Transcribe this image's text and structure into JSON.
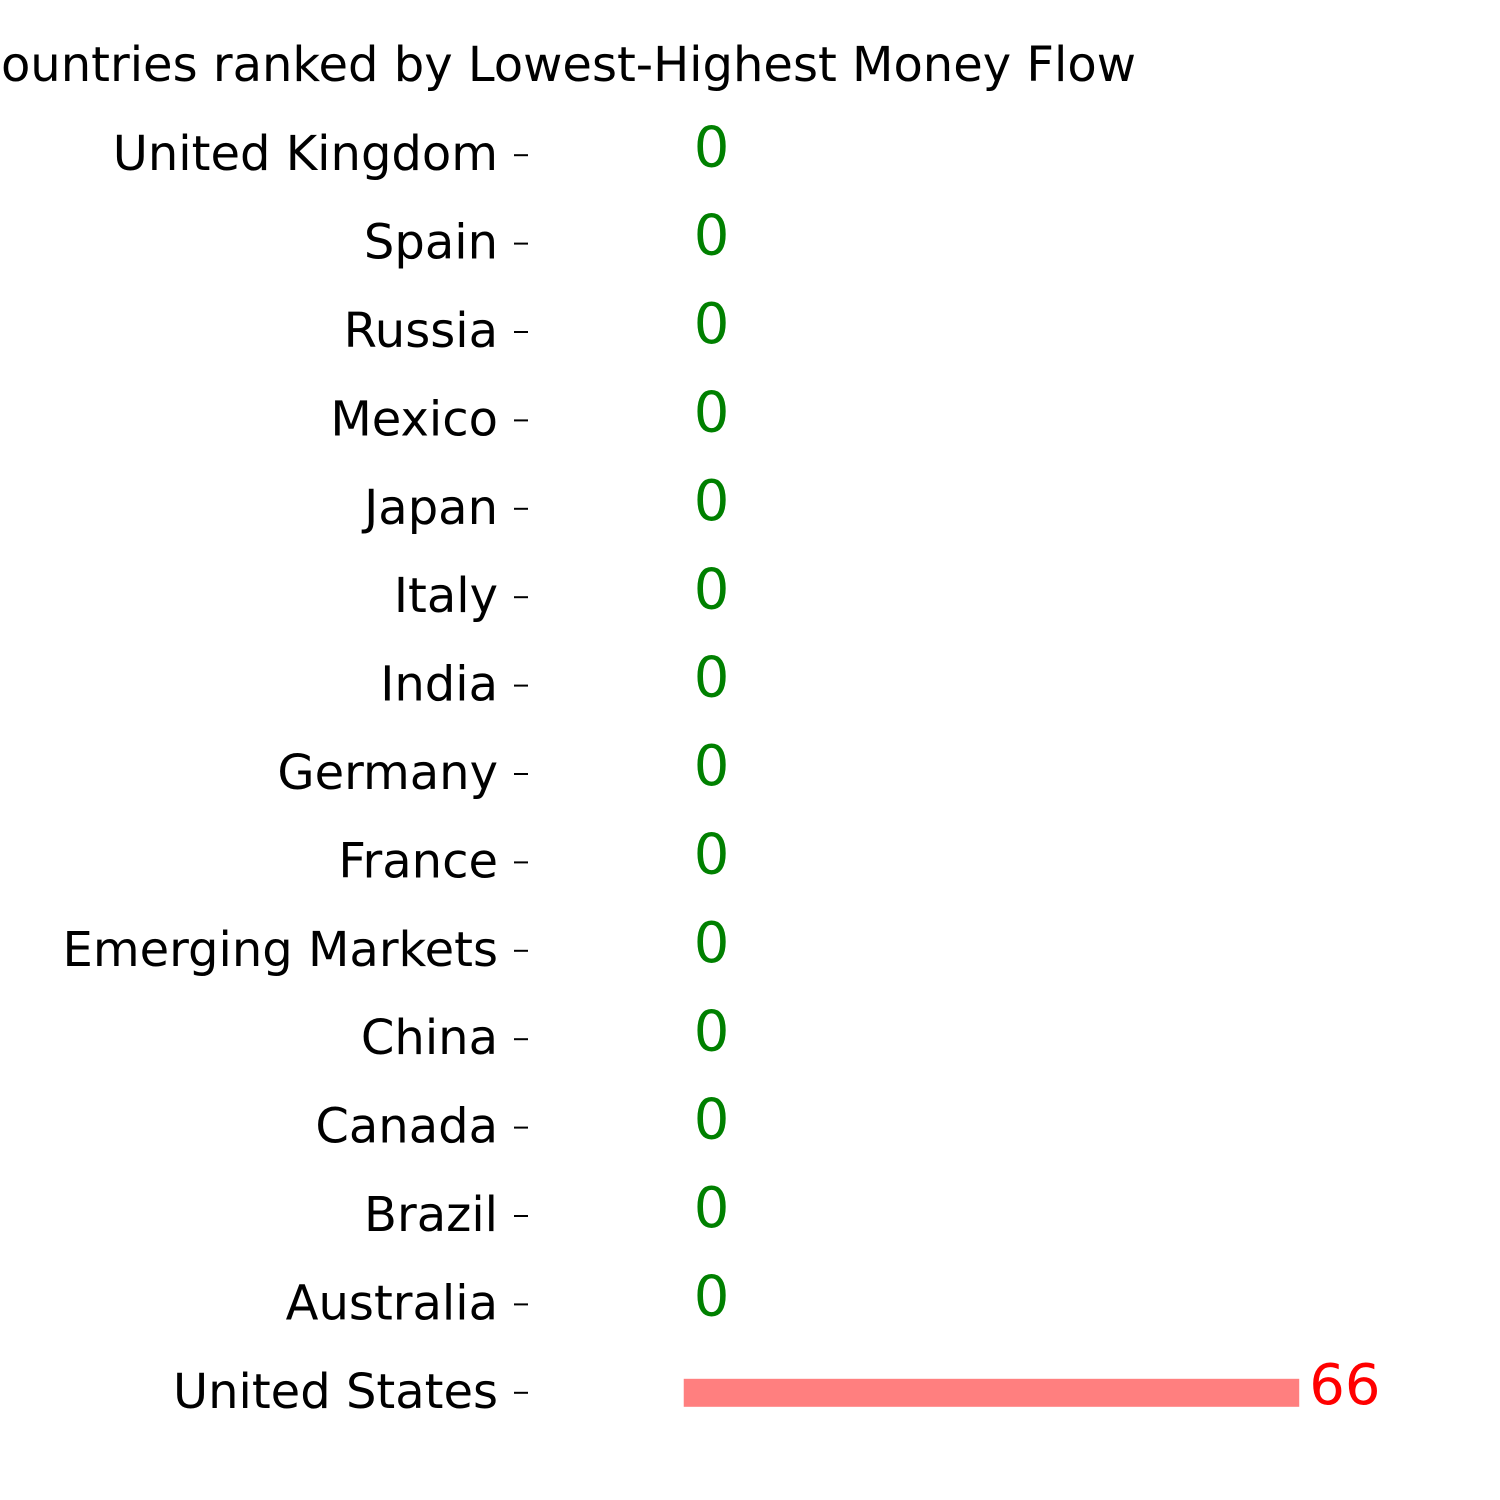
{
  "chart_data": {
    "type": "barh",
    "title": "Countries ranked by Lowest-Highest Money Flow",
    "categories": [
      "United Kingdom",
      "Spain",
      "Russia",
      "Mexico",
      "Japan",
      "Italy",
      "India",
      "Germany",
      "France",
      "Emerging Markets",
      "China",
      "Canada",
      "Brazil",
      "Australia",
      "United States"
    ],
    "values": [
      0,
      0,
      0,
      0,
      0,
      0,
      0,
      0,
      0,
      0,
      0,
      0,
      0,
      0,
      66
    ],
    "color": "#ff7f7f",
    "value_label_colors": [
      "green",
      "green",
      "green",
      "green",
      "green",
      "green",
      "green",
      "green",
      "green",
      "green",
      "green",
      "green",
      "green",
      "green",
      "red"
    ],
    "xlim": [
      -16.7,
      69.3
    ]
  }
}
